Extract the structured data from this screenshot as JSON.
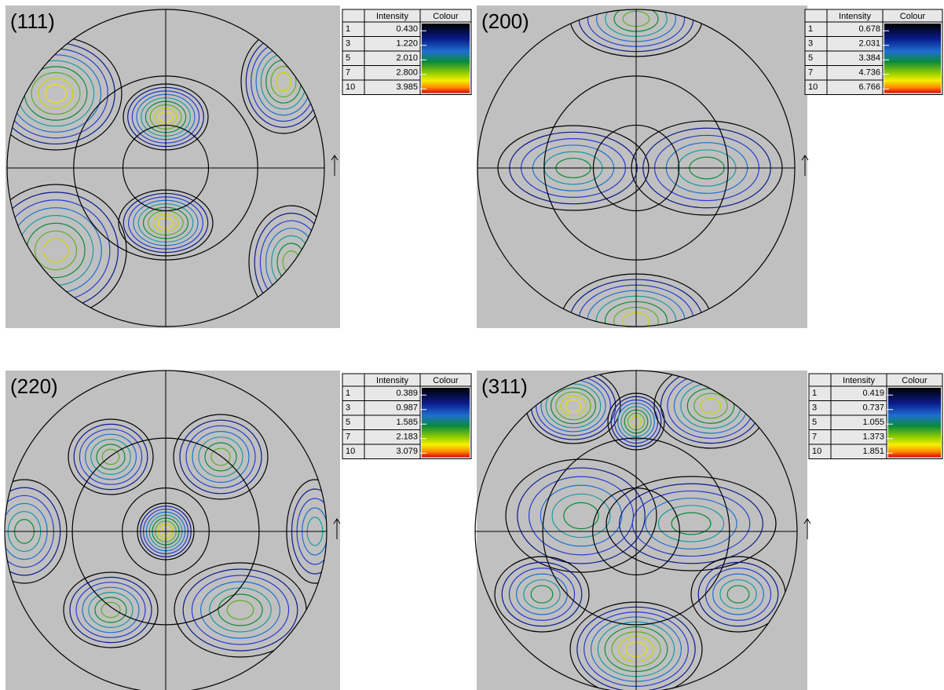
{
  "panels": [
    {
      "label": "(111)",
      "legend": {
        "header": [
          "Intensity",
          "Colour"
        ],
        "rows": [
          [
            "1",
            "0.430"
          ],
          [
            "3",
            "1.220"
          ],
          [
            "5",
            "2.010"
          ],
          [
            "7",
            "2.800"
          ],
          [
            "10",
            "3.985"
          ]
        ]
      }
    },
    {
      "label": "(200)",
      "legend": {
        "header": [
          "Intensity",
          "Colour"
        ],
        "rows": [
          [
            "1",
            "0.678"
          ],
          [
            "3",
            "2.031"
          ],
          [
            "5",
            "3.384"
          ],
          [
            "7",
            "4.736"
          ],
          [
            "10",
            "6.766"
          ]
        ]
      }
    },
    {
      "label": "(220)",
      "legend": {
        "header": [
          "Intensity",
          "Colour"
        ],
        "rows": [
          [
            "1",
            "0.389"
          ],
          [
            "3",
            "0.987"
          ],
          [
            "5",
            "1.585"
          ],
          [
            "7",
            "2.183"
          ],
          [
            "10",
            "3.079"
          ]
        ]
      }
    },
    {
      "label": "(311)",
      "legend": {
        "header": [
          "Intensity",
          "Colour"
        ],
        "rows": [
          [
            "1",
            "0.419"
          ],
          [
            "3",
            "0.737"
          ],
          [
            "5",
            "1.055"
          ],
          [
            "7",
            "1.373"
          ],
          [
            "10",
            "1.851"
          ]
        ]
      }
    }
  ]
}
